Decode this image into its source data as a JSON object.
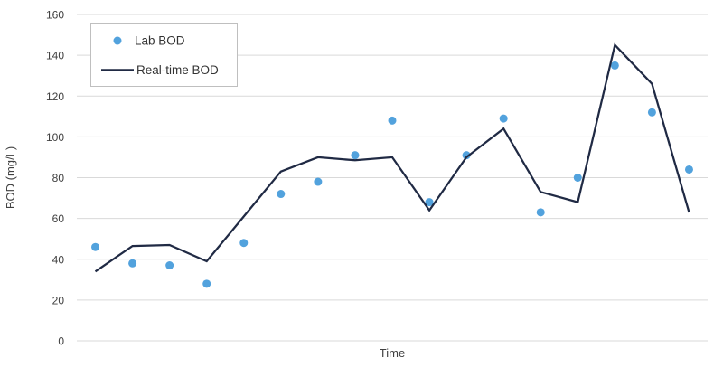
{
  "chart_data": {
    "type": "line",
    "title": "",
    "xlabel": "Time",
    "ylabel": "BOD (mg/L)",
    "ylim": [
      0,
      160
    ],
    "yticks": [
      0,
      20,
      40,
      60,
      80,
      100,
      120,
      140,
      160
    ],
    "x_tick_labels_visible": false,
    "grid": true,
    "legend_position": "top-left",
    "series": [
      {
        "name": "Lab BOD",
        "type": "scatter",
        "color": "#52A2DD",
        "values": [
          46,
          38,
          37,
          28,
          48,
          72,
          78,
          91,
          108,
          68,
          91,
          109,
          63,
          80,
          135,
          112,
          84
        ]
      },
      {
        "name": "Real-time BOD",
        "type": "line",
        "color": "#202A44",
        "values": [
          34,
          46.5,
          47,
          39,
          61,
          83,
          90,
          88.5,
          90,
          64,
          90,
          104,
          73,
          68,
          145,
          126,
          63
        ]
      }
    ],
    "colors": {
      "grid": "#D9D9D9",
      "text": "#404040",
      "legend_text": "#333333",
      "legend_border": "#BFBFBF",
      "background": "#FFFFFF"
    }
  }
}
